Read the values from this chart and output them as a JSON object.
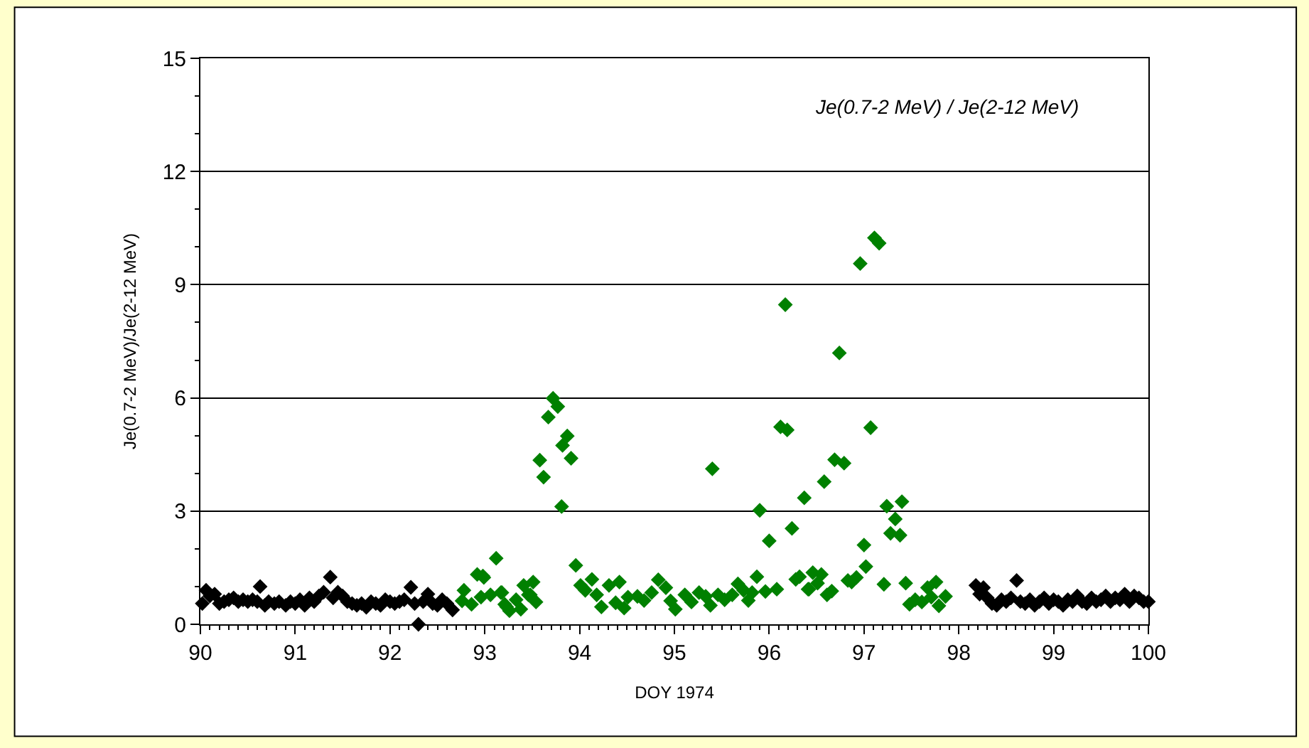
{
  "chart_data": {
    "type": "scatter",
    "xlabel": "DOY 1974",
    "ylabel": "Je(0.7-2 MeV)/Je(2-12 MeV)",
    "annotations": [
      "Je(0.7-2 MeV) / Je(2-12 MeV)"
    ],
    "xlim": [
      90,
      100
    ],
    "xticks": [
      90,
      91,
      92,
      93,
      94,
      95,
      96,
      97,
      98,
      99,
      100
    ],
    "ylim": [
      0,
      15
    ],
    "yticks": [
      0,
      3,
      6,
      9,
      12,
      15
    ],
    "grid": "y",
    "legend": false,
    "marker": "diamond",
    "series": [
      {
        "color": "#000000",
        "x": [
          90.02,
          90.06,
          90.1,
          90.15,
          90.2,
          90.25,
          90.3,
          90.35,
          90.4,
          90.45,
          90.5,
          90.55,
          90.6,
          90.63,
          90.68,
          90.72,
          90.78,
          90.83,
          90.9,
          90.95,
          91.0,
          91.05,
          91.1,
          91.15,
          91.2,
          91.25,
          91.3,
          91.37,
          91.4,
          91.45,
          91.5,
          91.55,
          91.6,
          91.65,
          91.7,
          91.75,
          91.8,
          91.85,
          91.9,
          91.95,
          92.0,
          92.05,
          92.1,
          92.15,
          92.22,
          92.26,
          92.3,
          92.35,
          92.4,
          92.45,
          92.5,
          92.55,
          92.6,
          92.66
        ],
        "values": [
          0.55,
          0.9,
          0.75,
          0.8,
          0.55,
          0.6,
          0.65,
          0.7,
          0.6,
          0.65,
          0.6,
          0.65,
          0.6,
          1.0,
          0.5,
          0.6,
          0.55,
          0.6,
          0.5,
          0.6,
          0.55,
          0.65,
          0.5,
          0.7,
          0.6,
          0.75,
          0.85,
          1.25,
          0.7,
          0.85,
          0.75,
          0.6,
          0.55,
          0.5,
          0.55,
          0.45,
          0.6,
          0.55,
          0.5,
          0.65,
          0.6,
          0.55,
          0.6,
          0.65,
          0.98,
          0.55,
          0.0,
          0.6,
          0.8,
          0.55,
          0.5,
          0.65,
          0.55,
          0.38
        ]
      },
      {
        "color": "#008000",
        "x": [
          92.76,
          92.78,
          92.86,
          92.92,
          92.96,
          92.98,
          92.99,
          93.06,
          93.12,
          93.17,
          93.18,
          93.21,
          93.23,
          93.26,
          93.33,
          93.38,
          93.41,
          93.46,
          93.48,
          93.51,
          93.54,
          93.58,
          93.62,
          93.67,
          93.72,
          93.77,
          93.81,
          93.82,
          93.87,
          93.91,
          93.96,
          94.01,
          94.06,
          94.13,
          94.18,
          94.23,
          94.31,
          94.38,
          94.42,
          94.47,
          94.51,
          94.61,
          94.68,
          94.76,
          94.83,
          94.91,
          94.96,
          95.01,
          95.11,
          95.18,
          95.26,
          95.33,
          95.38,
          95.4,
          95.46,
          95.53,
          95.61,
          95.67,
          95.73,
          95.78,
          95.82,
          95.87,
          95.9,
          95.96,
          96.0,
          96.08,
          96.12,
          96.17,
          96.19,
          96.24,
          96.28,
          96.32,
          96.37,
          96.41,
          96.42,
          96.46,
          96.51,
          96.55,
          96.58,
          96.61,
          96.66,
          96.69,
          96.74,
          96.79,
          96.83,
          96.87,
          96.92,
          96.96,
          97.0,
          97.02,
          97.07,
          97.11,
          97.16,
          97.21,
          97.24,
          97.28,
          97.33,
          97.38,
          97.4,
          97.44,
          97.48,
          97.54,
          97.61,
          97.67,
          97.71,
          97.76,
          97.79,
          97.86
        ],
        "values": [
          0.62,
          0.9,
          0.53,
          1.32,
          0.72,
          1.28,
          1.24,
          0.78,
          1.75,
          0.84,
          0.84,
          0.53,
          0.46,
          0.36,
          0.65,
          0.4,
          1.03,
          0.78,
          0.78,
          1.12,
          0.59,
          4.35,
          3.9,
          5.49,
          5.99,
          5.77,
          3.12,
          4.74,
          4.99,
          4.4,
          1.56,
          1.03,
          0.9,
          1.19,
          0.78,
          0.46,
          1.03,
          0.57,
          1.12,
          0.43,
          0.72,
          0.74,
          0.63,
          0.84,
          1.18,
          0.97,
          0.62,
          0.4,
          0.78,
          0.59,
          0.84,
          0.74,
          0.5,
          4.12,
          0.78,
          0.65,
          0.78,
          1.07,
          0.9,
          0.63,
          0.84,
          1.26,
          3.02,
          0.87,
          2.21,
          0.93,
          5.23,
          8.47,
          5.15,
          2.54,
          1.19,
          1.26,
          3.35,
          0.93,
          0.93,
          1.37,
          1.09,
          1.32,
          3.78,
          0.78,
          0.88,
          4.36,
          7.19,
          4.27,
          1.16,
          1.12,
          1.24,
          9.56,
          2.1,
          1.53,
          5.21,
          10.24,
          10.1,
          1.06,
          3.13,
          2.41,
          2.79,
          2.36,
          3.25,
          1.09,
          0.53,
          0.65,
          0.59,
          0.97,
          0.72,
          1.12,
          0.49,
          0.74
        ]
      },
      {
        "color": "#000000",
        "x": [
          98.18,
          98.22,
          98.26,
          98.3,
          98.35,
          98.4,
          98.45,
          98.5,
          98.55,
          98.61,
          98.65,
          98.7,
          98.75,
          98.8,
          98.85,
          98.9,
          98.95,
          99.0,
          99.05,
          99.1,
          99.15,
          99.2,
          99.25,
          99.3,
          99.35,
          99.4,
          99.45,
          99.5,
          99.55,
          99.6,
          99.65,
          99.7,
          99.75,
          99.8,
          99.85,
          99.9,
          99.95,
          100.0
        ],
        "values": [
          1.03,
          0.8,
          0.97,
          0.7,
          0.55,
          0.5,
          0.65,
          0.6,
          0.7,
          1.16,
          0.6,
          0.55,
          0.65,
          0.5,
          0.6,
          0.7,
          0.55,
          0.65,
          0.6,
          0.5,
          0.65,
          0.6,
          0.75,
          0.6,
          0.55,
          0.7,
          0.6,
          0.65,
          0.75,
          0.6,
          0.7,
          0.65,
          0.8,
          0.6,
          0.75,
          0.7,
          0.6,
          0.6
        ]
      }
    ]
  }
}
